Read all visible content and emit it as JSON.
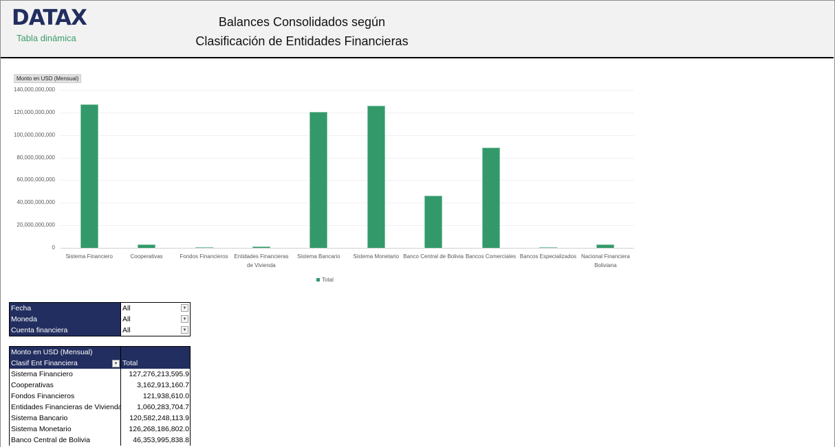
{
  "header": {
    "logo": "DATAX",
    "subtitle": "Tabla dinámica",
    "title_line1": "Balances Consolidados según",
    "title_line2": "Clasificación de Entidades Financieras"
  },
  "chart": {
    "field_button": "Monto en USD (Mensual)",
    "legend_label": "Total"
  },
  "chart_data": {
    "type": "bar",
    "title": "",
    "xlabel": "",
    "ylabel": "Monto en USD (Mensual)",
    "ylim": [
      0,
      140000000000
    ],
    "yticks": [
      "0",
      "20,000,000,000",
      "40,000,000,000",
      "60,000,000,000",
      "80,000,000,000",
      "100,000,000,000",
      "120,000,000,000",
      "140,000,000,000"
    ],
    "grid": true,
    "legend_position": "bottom",
    "color": "#33996b",
    "categories": [
      "Sistema Financiero",
      "Cooperativas",
      "Fondos Financieros",
      "Entidades Financieras de Vivienda",
      "Sistema Bancario",
      "Sistema Monetario",
      "Banco Central de Bolivia",
      "Bancos Comerciales",
      "Bancos Especializados",
      "Nacional Financiera Boliviana"
    ],
    "series": [
      {
        "name": "Total",
        "values": [
          127276213595.9,
          3162913160.7,
          121938610.0,
          1060283704.7,
          120582248113.9,
          126268186802.0,
          46353995838.8,
          89000000000,
          300000000,
          3000000000
        ]
      }
    ]
  },
  "filters": [
    {
      "name": "Fecha",
      "value": "All"
    },
    {
      "name": "Moneda",
      "value": "All"
    },
    {
      "name": "Cuenta financiera",
      "value": "All"
    }
  ],
  "pivot": {
    "measure": "Monto en USD (Mensual)",
    "row_field": "Clasif Ent Financiera",
    "col_header": "Total",
    "rows": [
      {
        "label": "Sistema Financiero",
        "value": "127,276,213,595.9"
      },
      {
        "label": "Cooperativas",
        "value": "3,162,913,160.7"
      },
      {
        "label": "Fondos Financieros",
        "value": "121,938,610.0"
      },
      {
        "label": "Entidades Financieras de Vivienda",
        "value": "1,060,283,704.7"
      },
      {
        "label": "Sistema Bancario",
        "value": "120,582,248,113.9"
      },
      {
        "label": "Sistema Monetario",
        "value": "126,268,186,802.0"
      },
      {
        "label": "Banco Central de Bolivia",
        "value": "46,353,995,838.8"
      }
    ]
  }
}
